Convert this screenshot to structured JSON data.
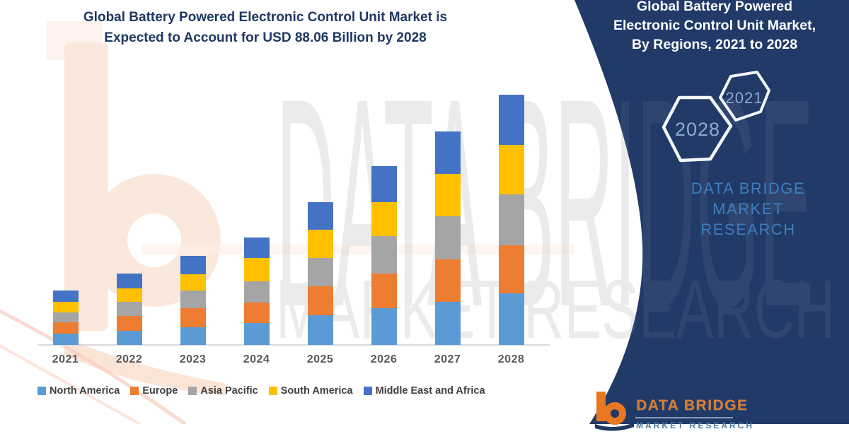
{
  "chart": {
    "title_line1": "Global Battery Powered Electronic Control Unit Market is",
    "title_line2": "Expected to Account for USD 88.06 Billion by 2028",
    "title_color": "#1F3864"
  },
  "chart_data": {
    "type": "bar",
    "stacked": true,
    "title": "Global Battery Powered Electronic Control Unit Market",
    "unit": "USD Billion",
    "categories": [
      "2021",
      "2022",
      "2023",
      "2024",
      "2025",
      "2026",
      "2027",
      "2028"
    ],
    "series": [
      {
        "name": "North America",
        "color": "#5B9BD5",
        "values": [
          4.0,
          5.0,
          6.2,
          7.7,
          10.4,
          12.9,
          15.2,
          18.2
        ]
      },
      {
        "name": "Europe",
        "color": "#ED7D31",
        "values": [
          4.0,
          5.2,
          6.7,
          7.2,
          10.2,
          12.2,
          14.9,
          16.9
        ]
      },
      {
        "name": "Asia Pacific",
        "color": "#A5A5A5",
        "values": [
          3.5,
          5.0,
          6.2,
          7.5,
          10.0,
          13.2,
          15.2,
          17.9
        ]
      },
      {
        "name": "South America",
        "color": "#FFC000",
        "values": [
          3.7,
          4.7,
          5.7,
          8.2,
          10.0,
          11.9,
          14.9,
          17.4
        ]
      },
      {
        "name": "Middle East and Africa",
        "color": "#4472C4",
        "values": [
          4.0,
          5.2,
          6.5,
          7.2,
          9.7,
          12.7,
          14.9,
          17.66
        ]
      }
    ],
    "totals_by_year": {
      "2021": 19.2,
      "2022": 25.1,
      "2023": 31.3,
      "2024": 37.8,
      "2025": 50.3,
      "2026": 62.9,
      "2027": 75.1,
      "2028": 88.06
    },
    "ylim": [
      0,
      90
    ],
    "gridlines": false,
    "legend_position": "bottom"
  },
  "panel": {
    "background": "#213A67",
    "heading_lines": [
      "Global Battery Powered",
      "Electronic Control Unit Market,",
      "By Regions, 2021 to 2028"
    ],
    "hexagons": [
      {
        "label": "2021"
      },
      {
        "label": "2028"
      }
    ],
    "hexagon_text_color": "#8FA9CF",
    "brand_lines": [
      "DATA BRIDGE MARKET",
      "RESEARCH"
    ],
    "brand_color": "#3E7DBF"
  },
  "watermarks": {
    "line1": "DATA BRIDGE",
    "line2": "MARKET RESEARCH"
  },
  "footer_logo": {
    "icon": "data-bridge-b-logo",
    "text_primary": "DATA BRIDGE",
    "text_secondary": "MARKET RESEARCH",
    "primary_color": "#E87722"
  }
}
